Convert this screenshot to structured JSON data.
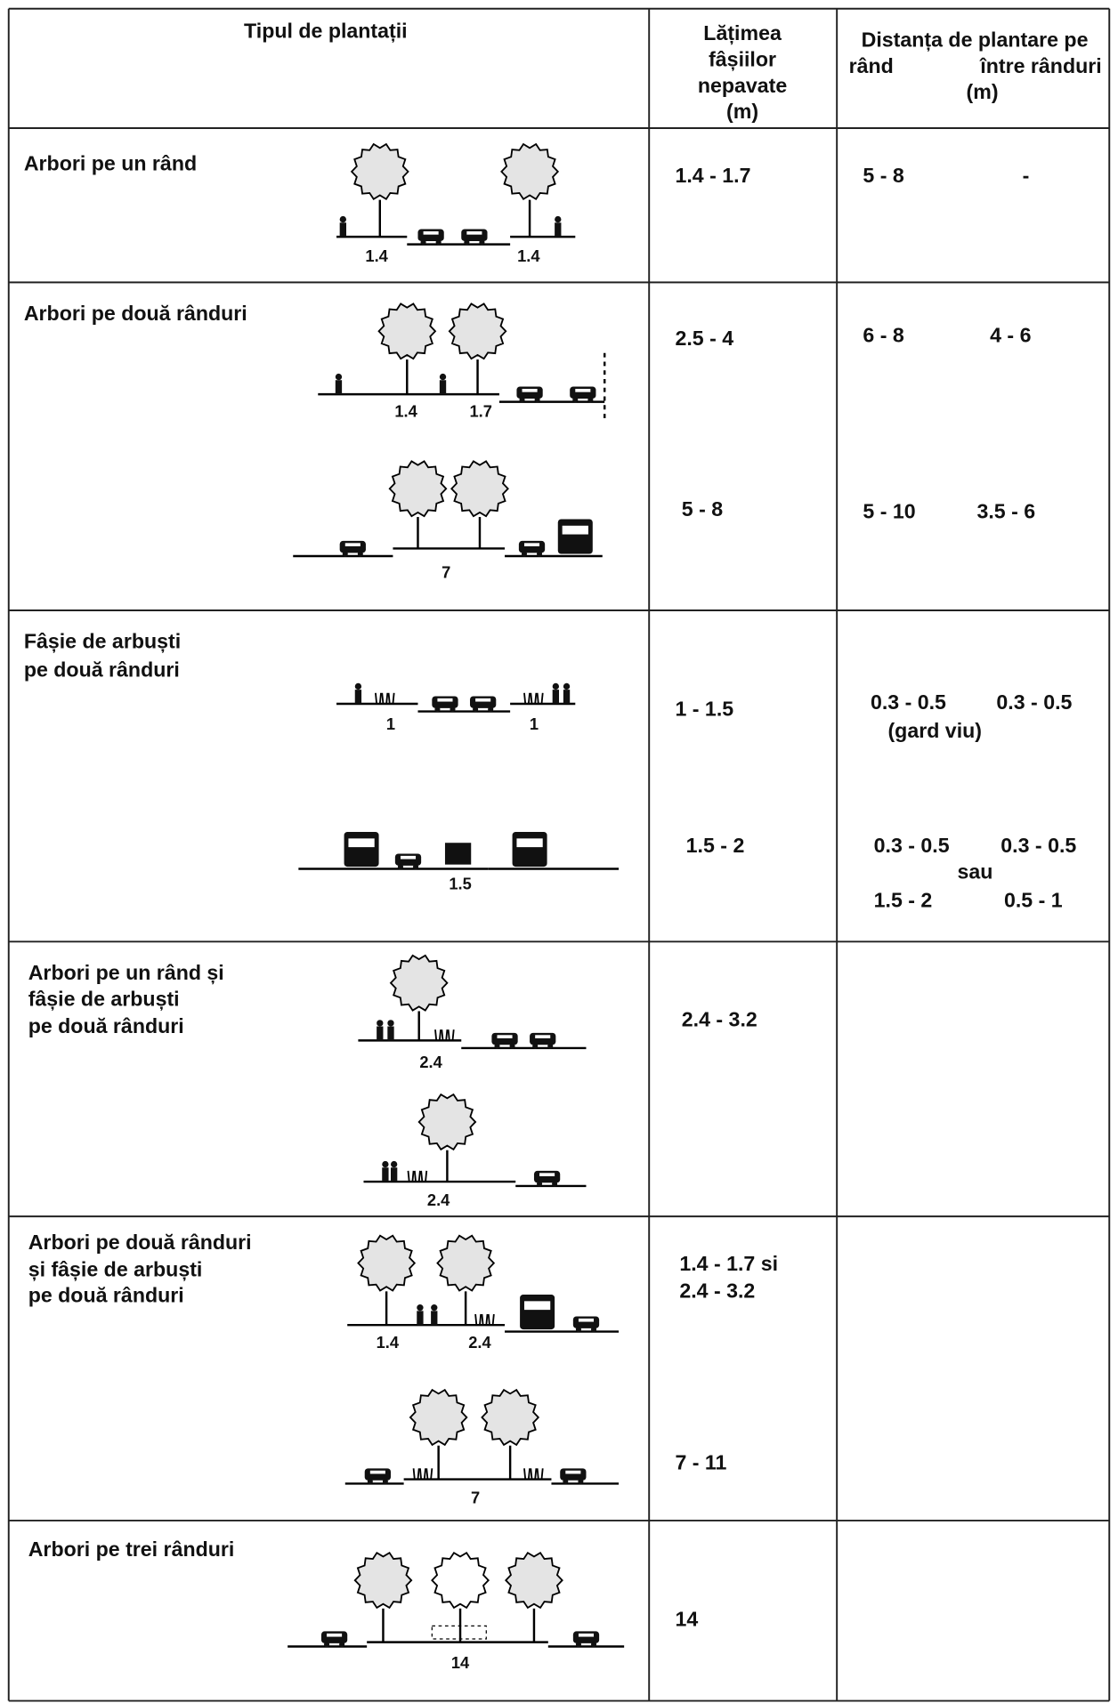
{
  "header": {
    "type": "Tipul de plantații",
    "width": [
      "Lățimea",
      "fâșiilor",
      "nepavate",
      "(m)"
    ],
    "distance": {
      "title": "Distanța de plantare pe",
      "row": "rând",
      "between": "între rânduri",
      "unit": "(m)"
    }
  },
  "rows": [
    {
      "label": [
        "Arbori pe un rând"
      ],
      "dims": [
        [
          "1.4",
          "1.4"
        ]
      ],
      "width": [
        "1.4 - 1.7"
      ],
      "spacing": [
        "5 - 8",
        "-"
      ]
    },
    {
      "label": [
        "Arbori pe două rânduri"
      ],
      "dims": [
        [
          "1.4",
          "1.7"
        ],
        [
          "7"
        ]
      ],
      "width": [
        "2.5 - 4",
        "5 - 8"
      ],
      "spacing": [
        "6 - 8",
        "4 - 6",
        "5 - 10",
        "3.5 - 6"
      ]
    },
    {
      "label": [
        "Fâșie de arbuști",
        "pe două rânduri"
      ],
      "dims": [
        [
          "1",
          "1"
        ],
        [
          "1.5"
        ]
      ],
      "width": [
        "1 - 1.5",
        "1.5 - 2"
      ],
      "spacing": [
        "0.3 - 0.5",
        "0.3 - 0.5",
        "(gard viu)",
        "0.3 - 0.5",
        "0.3 - 0.5",
        "sau",
        "1.5 - 2",
        "0.5 - 1"
      ]
    },
    {
      "label": [
        "Arbori pe un rând și",
        "fâșie de arbuști",
        "pe două rânduri"
      ],
      "dims": [
        [
          "2.4"
        ],
        [
          "2.4"
        ]
      ],
      "width": [
        "2.4 - 3.2"
      ]
    },
    {
      "label": [
        "Arbori pe două rânduri",
        "și fâșie de arbuști",
        "pe două rânduri"
      ],
      "dims": [
        [
          "1.4",
          "2.4"
        ],
        [
          "7"
        ]
      ],
      "width": [
        "1.4 - 1.7 si",
        "2.4 - 3.2",
        "7 - 11"
      ]
    },
    {
      "label": [
        "Arbori pe trei rânduri"
      ],
      "dims": [
        [
          "14"
        ]
      ],
      "width": [
        "14"
      ]
    }
  ]
}
